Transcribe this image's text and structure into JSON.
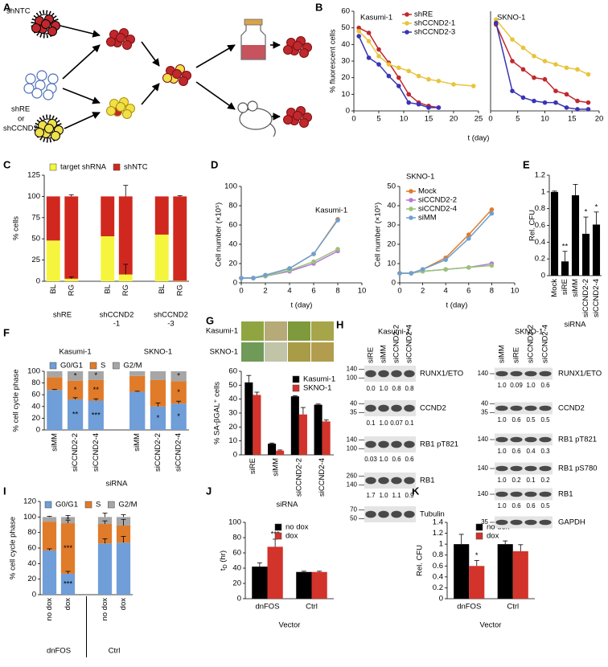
{
  "panel_labels": [
    "A",
    "B",
    "C",
    "D",
    "E",
    "F",
    "G",
    "H",
    "I",
    "J",
    "K"
  ],
  "diagram": {
    "labels": [
      "shNTC",
      "shRE",
      "or",
      "shCCND2"
    ]
  },
  "images": {
    "row_labels": [
      "Kasumi-1",
      "SKNO-1"
    ]
  },
  "chart_data": [
    {
      "type": "line",
      "title": "Kasumi-1",
      "ylabel": "% fluorescent cells",
      "xlabel": "t (day)",
      "xlim": [
        0,
        25
      ],
      "xticks": [
        0,
        5,
        10,
        15,
        20,
        25
      ],
      "ylim": [
        0,
        60
      ],
      "yticks": [
        0,
        10,
        20,
        30,
        40,
        50,
        60
      ],
      "legend": "top-right",
      "series": [
        {
          "name": "shRE",
          "color": "#c0282d",
          "x": [
            1,
            3,
            5,
            7,
            9,
            11,
            13,
            15,
            17
          ],
          "values": [
            50,
            47,
            37,
            29,
            20,
            10,
            5,
            3,
            2
          ]
        },
        {
          "name": "shCCND2-1",
          "color": "#e8c43c",
          "x": [
            1,
            3,
            5,
            7,
            9,
            11,
            13,
            15,
            17,
            20,
            24
          ],
          "values": [
            48,
            42,
            33,
            28,
            26,
            24,
            21,
            19,
            18,
            16,
            15
          ]
        },
        {
          "name": "shCCND2-3",
          "color": "#3a34b4",
          "x": [
            1,
            3,
            5,
            7,
            9,
            11,
            13,
            15,
            17
          ],
          "values": [
            45,
            32,
            28,
            21,
            15,
            5,
            4,
            2,
            2
          ]
        }
      ]
    },
    {
      "type": "line",
      "title": "SKNO-1",
      "xlim": [
        0,
        20
      ],
      "xticks": [
        0,
        5,
        10,
        15,
        20
      ],
      "ylim": [
        0,
        60
      ],
      "series": [
        {
          "color": "#c0282d",
          "x": [
            1,
            4,
            6,
            8,
            10,
            12,
            14,
            16,
            18
          ],
          "values": [
            52,
            30,
            25,
            20,
            19,
            12,
            10,
            6,
            5
          ]
        },
        {
          "color": "#e8c43c",
          "x": [
            1,
            4,
            6,
            8,
            10,
            12,
            14,
            16,
            18
          ],
          "values": [
            55,
            43,
            38,
            33,
            30,
            28,
            26,
            25,
            22
          ]
        },
        {
          "color": "#3a34b4",
          "x": [
            1,
            4,
            6,
            8,
            10,
            12,
            14,
            16,
            18
          ],
          "values": [
            53,
            12,
            8,
            6,
            5,
            5,
            2,
            1,
            1
          ]
        }
      ]
    },
    {
      "type": "stacked_bar",
      "ylabel": "% cells",
      "categories": [
        "BL",
        "RG",
        "BL",
        "RG",
        "BL",
        "RG"
      ],
      "groups": [
        [
          "shRE"
        ],
        [
          "shCCND2",
          "-1"
        ],
        [
          "shCCND2",
          "-3"
        ]
      ],
      "ylim": [
        0,
        125
      ],
      "yticks": [
        0,
        25,
        50,
        75,
        100,
        125
      ],
      "legend": "top",
      "series": [
        {
          "name": "target shRNA",
          "color": "#f5f53d",
          "values": [
            48,
            3,
            53,
            8,
            55,
            0.5
          ],
          "errors": [
            null,
            2,
            null,
            12,
            null,
            null
          ]
        },
        {
          "name": "shNTC",
          "color": "#d0281f",
          "values": [
            52,
            97,
            47,
            92,
            45,
            99.5
          ],
          "errors": [
            null,
            2,
            null,
            13,
            null,
            1
          ]
        }
      ]
    },
    {
      "type": "line",
      "title": "Kasumi-1",
      "ylabel": "Cell number (×10⁵)",
      "xlabel": "t (day)",
      "xlim": [
        0,
        10
      ],
      "xticks": [
        0,
        2,
        4,
        6,
        8,
        10
      ],
      "ylim": [
        0,
        100
      ],
      "yticks": [
        0,
        20,
        40,
        60,
        80,
        100
      ],
      "series": [
        {
          "color": "#e07b2a",
          "x": [
            0,
            1,
            2,
            4,
            6,
            8
          ],
          "values": [
            5,
            5,
            8,
            15,
            30,
            66
          ]
        },
        {
          "color": "#b57ad6",
          "x": [
            0,
            1,
            2,
            4,
            6,
            8
          ],
          "values": [
            5,
            5,
            7,
            12,
            20,
            33
          ]
        },
        {
          "color": "#9bc27a",
          "x": [
            0,
            1,
            2,
            4,
            6,
            8
          ],
          "values": [
            5,
            5,
            7,
            13,
            22,
            35
          ]
        },
        {
          "color": "#6fa0d0",
          "x": [
            0,
            1,
            2,
            4,
            6,
            8
          ],
          "values": [
            5,
            5,
            8,
            15,
            30,
            65
          ]
        }
      ]
    },
    {
      "type": "line",
      "title": "SKNO-1",
      "ylabel": "Cell number (×10⁵)",
      "xlabel": "t (day)",
      "xlim": [
        0,
        10
      ],
      "xticks": [
        0,
        2,
        4,
        6,
        8,
        10
      ],
      "ylim": [
        0,
        50
      ],
      "yticks": [
        0,
        10,
        20,
        30,
        40,
        50
      ],
      "legend": "top-left",
      "series": [
        {
          "name": "Mock",
          "color": "#e07b2a",
          "x": [
            0,
            1,
            2,
            4,
            6,
            8
          ],
          "values": [
            5,
            5,
            7,
            13,
            25,
            38
          ]
        },
        {
          "name": "siCCND2-2",
          "color": "#b57ad6",
          "x": [
            0,
            1,
            2,
            4,
            6,
            8
          ],
          "values": [
            5,
            5,
            6,
            7,
            8,
            10
          ]
        },
        {
          "name": "siCCND2-4",
          "color": "#9bc27a",
          "x": [
            0,
            1,
            2,
            4,
            6,
            8
          ],
          "values": [
            5,
            5,
            6,
            7,
            8,
            9
          ]
        },
        {
          "name": "siMM",
          "color": "#6fa0d0",
          "x": [
            0,
            1,
            2,
            4,
            6,
            8
          ],
          "values": [
            5,
            5,
            7,
            12,
            23,
            36
          ]
        }
      ]
    },
    {
      "type": "bar",
      "ylabel": "Rel. CFU",
      "xlabel": "siRNA",
      "categories": [
        "Mock",
        "siRE",
        "siMM",
        "siCCND2-2",
        "siCCND2-4"
      ],
      "ylim": [
        0,
        1.2
      ],
      "yticks": [
        0,
        0.2,
        0.4,
        0.6,
        0.8,
        1,
        1.2
      ],
      "series": [
        {
          "color": "#000000",
          "values": [
            1,
            0.17,
            0.96,
            0.5,
            0.61
          ],
          "errors": [
            0.01,
            0.12,
            0.13,
            0.2,
            0.15
          ],
          "annotations": [
            null,
            "**",
            null,
            "*",
            "*"
          ]
        }
      ]
    },
    {
      "type": "stacked_bar",
      "ylabel": "% cell cycle phase",
      "xlabel": "siRNA",
      "categories": [
        "siMM",
        "siCCND2-2",
        "siCCND2-4",
        "siMM",
        "siCCND2-2",
        "siCCND2-4"
      ],
      "groups": [
        [
          "Kasumi-1"
        ],
        [
          "SKNO-1"
        ]
      ],
      "ylim": [
        0,
        100
      ],
      "yticks": [
        0,
        20,
        40,
        60,
        80,
        100
      ],
      "legend": "top",
      "series": [
        {
          "name": "G0/G1",
          "color": "#6f9ed8",
          "values": [
            68,
            52,
            50,
            65,
            40,
            45
          ],
          "errors": [
            1,
            3,
            3,
            1,
            6,
            4
          ],
          "annotations": [
            null,
            "**",
            "***",
            null,
            "*",
            "*"
          ]
        },
        {
          "name": "S",
          "color": "#e07b2a",
          "values": [
            22,
            32,
            35,
            27,
            45,
            38
          ],
          "annotations": [
            null,
            "*",
            "**",
            null,
            null,
            "*"
          ]
        },
        {
          "name": "G2/M",
          "color": "#a6a6a6",
          "values": [
            10,
            16,
            15,
            8,
            15,
            17
          ],
          "annotations": [
            null,
            "*",
            "*",
            null,
            null,
            "*"
          ]
        }
      ]
    },
    {
      "type": "bar",
      "ylabel": "% SA-βGAL⁺ cells",
      "xlabel": "siRNA",
      "categories": [
        "siRE",
        "siMM",
        "siCCND2-2",
        "siCCND2-4"
      ],
      "ylim": [
        0,
        60
      ],
      "yticks": [
        0,
        10,
        20,
        30,
        40,
        50,
        60
      ],
      "legend": "top-right",
      "series": [
        {
          "name": "Kasumi-1",
          "color": "#000000",
          "values": [
            52,
            8,
            42,
            36
          ],
          "errors": [
            5,
            0.5,
            0.5,
            0.5
          ]
        },
        {
          "name": "SKNO-1",
          "color": "#d2332b",
          "values": [
            43,
            3,
            29,
            24
          ],
          "errors": [
            2,
            0.5,
            5,
            1
          ]
        }
      ]
    },
    {
      "type": "stacked_bar",
      "ylabel": "% cell cycle phase",
      "categories": [
        "no dox",
        "dox",
        "no dox",
        "dox"
      ],
      "groups": [
        [
          "dnFOS"
        ],
        [
          "Ctrl"
        ]
      ],
      "ylim": [
        0,
        120
      ],
      "yticks": [
        0,
        20,
        40,
        60,
        80,
        100,
        120
      ],
      "legend": "top",
      "series": [
        {
          "name": "G0/G1",
          "color": "#6f9ed8",
          "values": [
            57,
            27,
            66,
            67
          ],
          "errors": [
            2,
            3,
            6,
            8
          ],
          "annotations": [
            null,
            "***",
            null,
            null
          ]
        },
        {
          "name": "S",
          "color": "#e07b2a",
          "values": [
            37,
            65,
            25,
            22
          ],
          "errors": [
            null,
            4,
            4,
            8
          ],
          "annotations": [
            null,
            "***",
            null,
            null
          ]
        },
        {
          "name": "G2/M",
          "color": "#a6a6a6",
          "values": [
            6,
            8,
            9,
            11
          ],
          "errors": [
            1,
            2,
            5,
            3
          ],
          "annotations": [
            null,
            "*",
            null,
            null
          ]
        }
      ]
    },
    {
      "type": "bar",
      "ylabel": [
        "t",
        "D",
        " (hr)"
      ],
      "xlabel": "Vector",
      "categories": [
        "dnFOS",
        "Ctrl"
      ],
      "ylim": [
        0,
        100
      ],
      "yticks": [
        0,
        20,
        40,
        60,
        80,
        100
      ],
      "legend": "top-left",
      "series": [
        {
          "name": "no dox",
          "color": "#000000",
          "values": [
            42,
            35
          ],
          "errors": [
            5,
            1
          ]
        },
        {
          "name": "dox",
          "color": "#d2332b",
          "values": [
            68,
            35
          ],
          "errors": [
            10,
            1
          ],
          "annotations": [
            "***",
            null
          ]
        }
      ]
    },
    {
      "type": "bar",
      "ylabel": "Rel. CFU",
      "xlabel": "Vector",
      "categories": [
        "dnFOS",
        "Ctrl"
      ],
      "ylim": [
        0,
        1.4
      ],
      "yticks": [
        0,
        0.2,
        0.4,
        0.6,
        0.8,
        1,
        1.2,
        1.4
      ],
      "legend": "top-right",
      "series": [
        {
          "name": "no dox",
          "color": "#000000",
          "values": [
            1,
            1
          ],
          "errors": [
            0.18,
            0.06
          ]
        },
        {
          "name": "dox",
          "color": "#d2332b",
          "values": [
            0.6,
            0.87
          ],
          "errors": [
            0.1,
            0.12
          ],
          "annotations": [
            "*",
            null
          ]
        }
      ]
    }
  ],
  "blots": [
    {
      "title": "Kasumi-1",
      "lanes": [
        "siRE",
        "siMM",
        "siCCND2-2",
        "siCCND2-4"
      ],
      "rows": [
        {
          "name": "RUNX1/ETO",
          "markers": [
            140,
            100
          ],
          "quant": [
            "0.0",
            "1.0",
            "0.8",
            "0.8"
          ]
        },
        {
          "name": "CCND2",
          "markers": [
            40,
            35
          ],
          "quant": [
            "0.1",
            "1.0",
            "0.07",
            "0.1"
          ]
        },
        {
          "name": "RB1 pT821",
          "markers": [
            140,
            100
          ],
          "quant": [
            "0.03",
            "1.0",
            "0.6",
            "0.6"
          ]
        },
        {
          "name": "RB1",
          "markers": [
            260,
            140
          ],
          "quant": [
            "1.7",
            "1.0",
            "1.1",
            "0.9"
          ]
        },
        {
          "name": "Tubulin",
          "markers": [
            70,
            50
          ]
        }
      ]
    },
    {
      "title": "SKNO-1",
      "lanes": [
        "siMM",
        "siRE",
        "siCCND2-2",
        "siCCND2-4"
      ],
      "rows": [
        {
          "name": "RUNX1/ETO",
          "markers": [
            140
          ],
          "quant": [
            "1.0",
            "0.09",
            "1.0",
            "0.6"
          ]
        },
        {
          "name": "CCND2",
          "markers": [
            40,
            35
          ],
          "quant": [
            "1.0",
            "0.6",
            "0.5",
            "0.5"
          ]
        },
        {
          "name": "RB1 pT821",
          "markers": [
            140
          ],
          "quant": [
            "1.0",
            "0.6",
            "0.4",
            "0.3"
          ]
        },
        {
          "name": "RB1 pS780",
          "markers": [
            140
          ],
          "quant": [
            "1.0",
            "0.2",
            "0.1",
            "0.2"
          ]
        },
        {
          "name": "RB1",
          "markers": [
            140
          ],
          "quant": [
            "1.0",
            "0.6",
            "0.6",
            "0.5"
          ]
        },
        {
          "name": "GAPDH",
          "markers": [
            35
          ]
        }
      ]
    }
  ]
}
